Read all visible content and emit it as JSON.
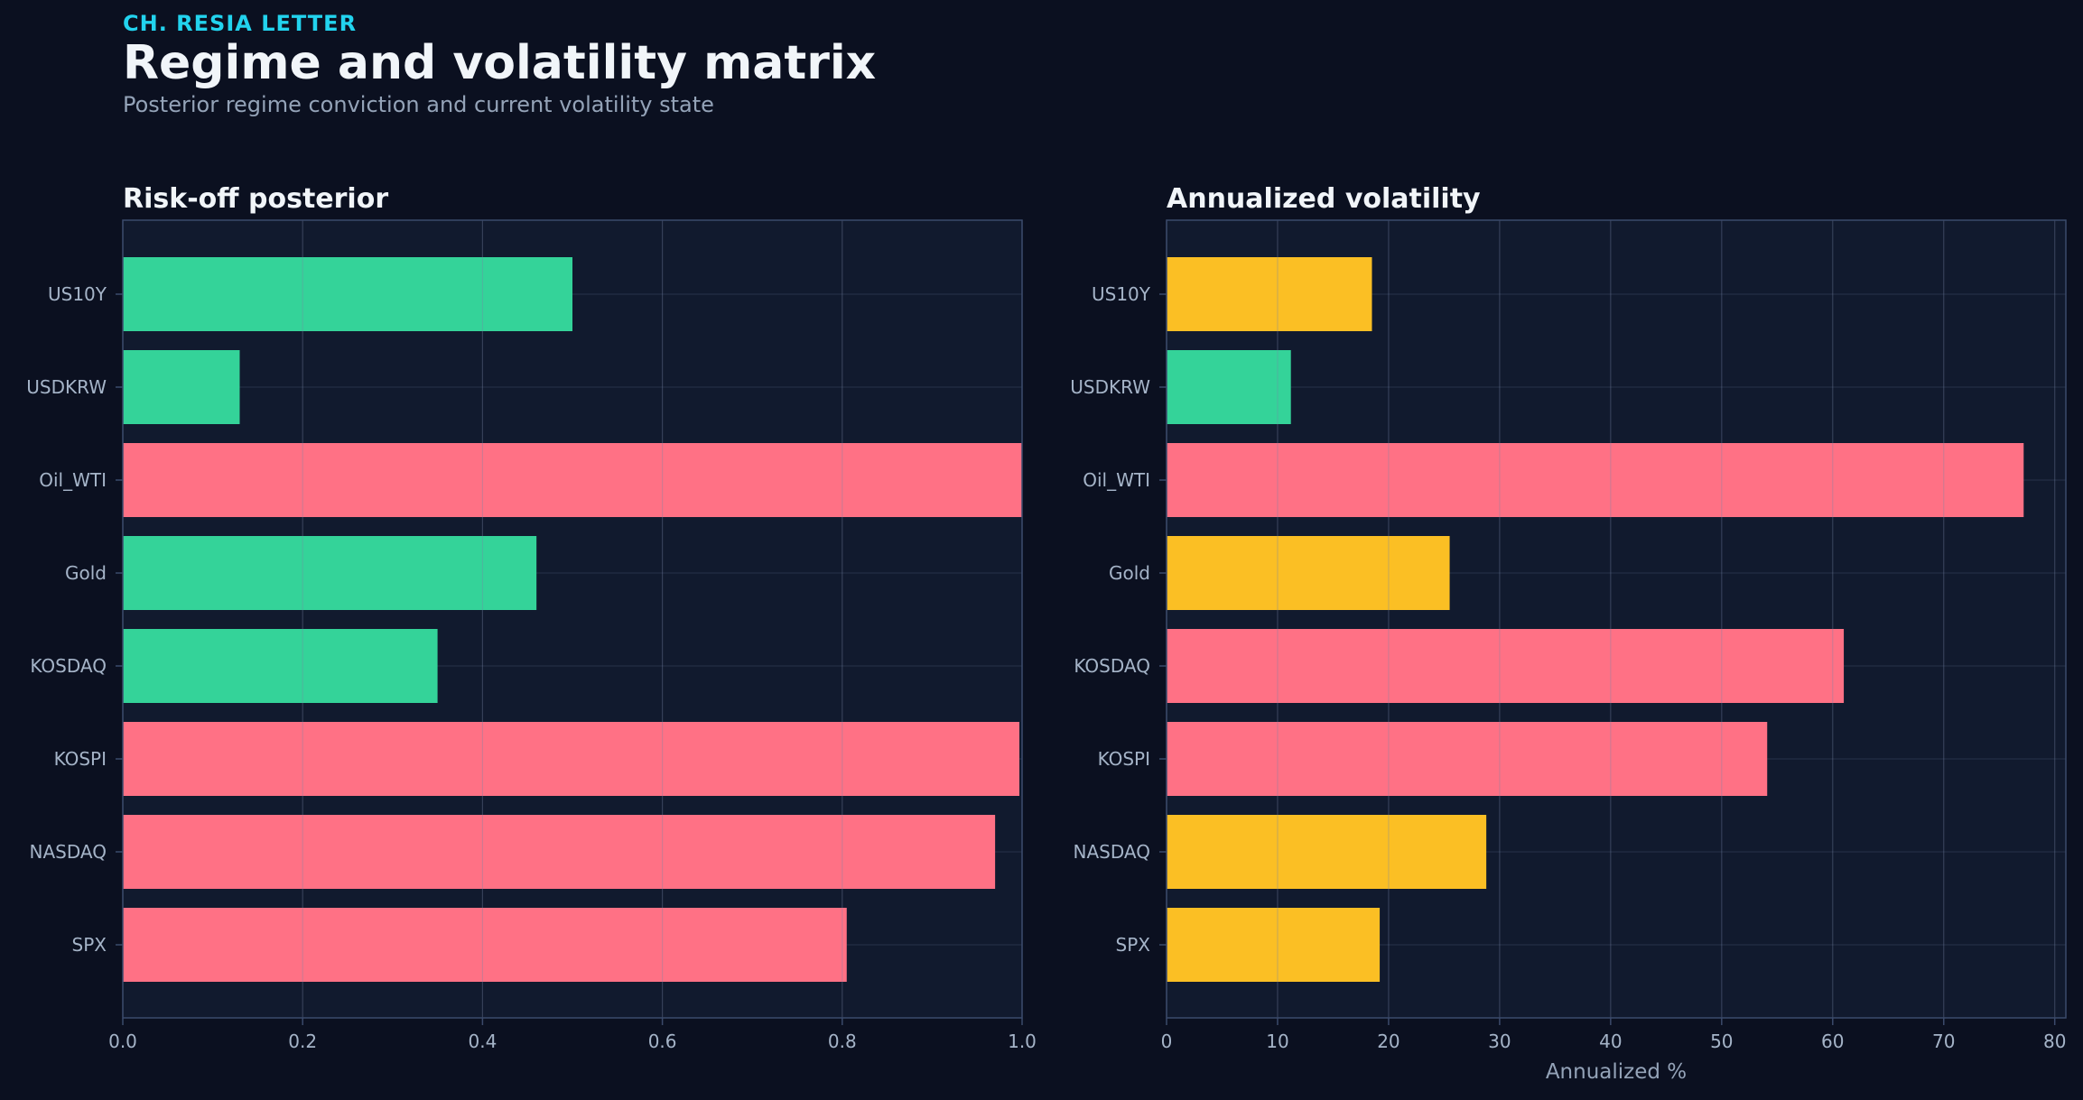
{
  "header": {
    "kicker": "CH. RESIA LETTER",
    "title": "Regime and volatility matrix",
    "subtitle": "Posterior regime conviction and current volatility state"
  },
  "colors": {
    "background": "#0b1020",
    "panel": "#111a2e",
    "frame": "#3b4a6b",
    "grid": "#26324a",
    "risk_off": "#ff7185",
    "risk_on": "#34d399",
    "elevated": "#fbbf24"
  },
  "chart_data": [
    {
      "type": "bar",
      "orientation": "horizontal",
      "title": "Risk-off posterior",
      "xlabel": "",
      "categories": [
        "US10Y",
        "USDKRW",
        "Oil_WTI",
        "Gold",
        "KOSDAQ",
        "KOSPI",
        "NASDAQ",
        "SPX"
      ],
      "values": [
        0.5,
        0.13,
        1.0,
        0.46,
        0.35,
        0.997,
        0.97,
        0.805
      ],
      "bar_colors": [
        "#34d399",
        "#34d399",
        "#ff7185",
        "#34d399",
        "#34d399",
        "#ff7185",
        "#ff7185",
        "#ff7185"
      ],
      "xlim": [
        0,
        1.0
      ],
      "xticks": [
        0.0,
        0.2,
        0.4,
        0.6,
        0.8,
        1.0
      ],
      "xtick_labels": [
        "0.0",
        "0.2",
        "0.4",
        "0.6",
        "0.8",
        "1.0"
      ],
      "grid": true
    },
    {
      "type": "bar",
      "orientation": "horizontal",
      "title": "Annualized volatility",
      "xlabel": "Annualized %",
      "categories": [
        "US10Y",
        "USDKRW",
        "Oil_WTI",
        "Gold",
        "KOSDAQ",
        "KOSPI",
        "NASDAQ",
        "SPX"
      ],
      "values": [
        18.5,
        11.2,
        77.2,
        25.5,
        61.0,
        54.1,
        28.8,
        19.2
      ],
      "bar_colors": [
        "#fbbf24",
        "#34d399",
        "#ff7185",
        "#fbbf24",
        "#ff7185",
        "#ff7185",
        "#fbbf24",
        "#fbbf24"
      ],
      "xlim": [
        0,
        81
      ],
      "xticks": [
        0,
        10,
        20,
        30,
        40,
        50,
        60,
        70,
        80
      ],
      "xtick_labels": [
        "0",
        "10",
        "20",
        "30",
        "40",
        "50",
        "60",
        "70",
        "80"
      ],
      "grid": true
    }
  ]
}
